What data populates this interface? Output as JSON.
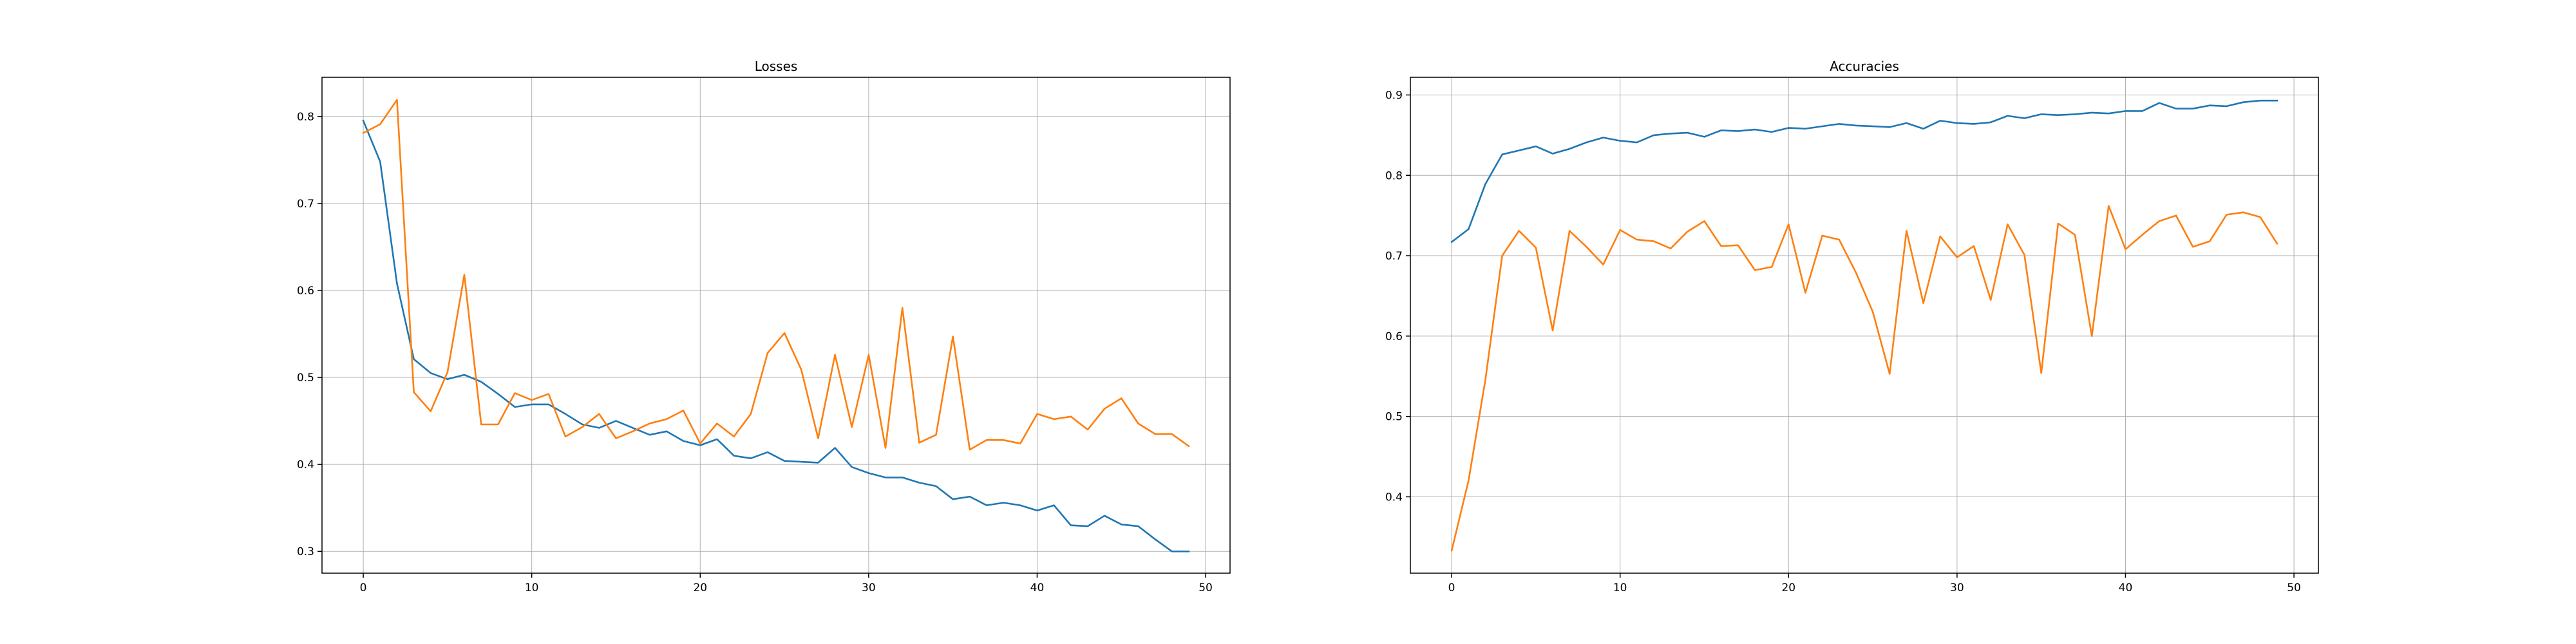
{
  "chart_data": [
    {
      "type": "line",
      "title": "Losses",
      "xlabel": "",
      "ylabel": "",
      "xlim": [
        -2.45,
        51.45
      ],
      "ylim": [
        0.275,
        0.845
      ],
      "grid": true,
      "xticks": [
        0,
        10,
        20,
        30,
        40,
        50
      ],
      "yticks": [
        0.3,
        0.4,
        0.5,
        0.6,
        0.7,
        0.8
      ],
      "xtick_labels": [
        "0",
        "10",
        "20",
        "30",
        "40",
        "50"
      ],
      "ytick_labels": [
        "0.3",
        "0.4",
        "0.5",
        "0.6",
        "0.7",
        "0.8"
      ],
      "x": [
        0,
        1,
        2,
        3,
        4,
        5,
        6,
        7,
        8,
        9,
        10,
        11,
        12,
        13,
        14,
        15,
        16,
        17,
        18,
        19,
        20,
        21,
        22,
        23,
        24,
        25,
        26,
        27,
        28,
        29,
        30,
        31,
        32,
        33,
        34,
        35,
        36,
        37,
        38,
        39,
        40,
        41,
        42,
        43,
        44,
        45,
        46,
        47,
        48,
        49
      ],
      "series": [
        {
          "color": "#1f77b4",
          "values": [
            0.795,
            0.748,
            0.608,
            0.521,
            0.505,
            0.498,
            0.503,
            0.495,
            0.481,
            0.466,
            0.469,
            0.469,
            0.458,
            0.446,
            0.442,
            0.45,
            0.442,
            0.434,
            0.438,
            0.427,
            0.422,
            0.429,
            0.41,
            0.407,
            0.414,
            0.404,
            0.403,
            0.402,
            0.419,
            0.397,
            0.39,
            0.385,
            0.385,
            0.379,
            0.375,
            0.36,
            0.363,
            0.353,
            0.356,
            0.353,
            0.347,
            0.353,
            0.33,
            0.329,
            0.341,
            0.331,
            0.329,
            0.314,
            0.3,
            0.3
          ]
        },
        {
          "color": "#ff7f0e",
          "values": [
            0.781,
            0.791,
            0.819,
            0.483,
            0.461,
            0.506,
            0.618,
            0.446,
            0.446,
            0.482,
            0.474,
            0.481,
            0.432,
            0.443,
            0.458,
            0.43,
            0.438,
            0.447,
            0.452,
            0.462,
            0.424,
            0.447,
            0.432,
            0.458,
            0.528,
            0.551,
            0.509,
            0.43,
            0.526,
            0.443,
            0.526,
            0.419,
            0.58,
            0.425,
            0.434,
            0.547,
            0.417,
            0.428,
            0.428,
            0.424,
            0.458,
            0.452,
            0.455,
            0.44,
            0.464,
            0.476,
            0.447,
            0.435,
            0.435,
            0.421
          ]
        }
      ]
    },
    {
      "type": "line",
      "title": "Accuracies",
      "xlabel": "",
      "ylabel": "",
      "xlim": [
        -2.45,
        51.45
      ],
      "ylim": [
        0.305,
        0.922
      ],
      "grid": true,
      "xticks": [
        0,
        10,
        20,
        30,
        40,
        50
      ],
      "yticks": [
        0.4,
        0.5,
        0.6,
        0.7,
        0.8,
        0.9
      ],
      "xtick_labels": [
        "0",
        "10",
        "20",
        "30",
        "40",
        "50"
      ],
      "ytick_labels": [
        "0.4",
        "0.5",
        "0.6",
        "0.7",
        "0.8",
        "0.9"
      ],
      "x": [
        0,
        1,
        2,
        3,
        4,
        5,
        6,
        7,
        8,
        9,
        10,
        11,
        12,
        13,
        14,
        15,
        16,
        17,
        18,
        19,
        20,
        21,
        22,
        23,
        24,
        25,
        26,
        27,
        28,
        29,
        30,
        31,
        32,
        33,
        34,
        35,
        36,
        37,
        38,
        39,
        40,
        41,
        42,
        43,
        44,
        45,
        46,
        47,
        48,
        49
      ],
      "series": [
        {
          "color": "#1f77b4",
          "values": [
            0.717,
            0.733,
            0.789,
            0.826,
            0.831,
            0.836,
            0.827,
            0.833,
            0.841,
            0.847,
            0.843,
            0.841,
            0.85,
            0.852,
            0.853,
            0.848,
            0.856,
            0.855,
            0.857,
            0.854,
            0.859,
            0.858,
            0.861,
            0.864,
            0.862,
            0.861,
            0.86,
            0.865,
            0.858,
            0.868,
            0.865,
            0.864,
            0.866,
            0.874,
            0.871,
            0.876,
            0.875,
            0.876,
            0.878,
            0.877,
            0.88,
            0.88,
            0.89,
            0.883,
            0.883,
            0.887,
            0.886,
            0.891,
            0.893,
            0.893
          ]
        },
        {
          "color": "#ff7f0e",
          "values": [
            0.333,
            0.42,
            0.545,
            0.7,
            0.731,
            0.71,
            0.607,
            0.731,
            0.711,
            0.689,
            0.732,
            0.72,
            0.718,
            0.709,
            0.73,
            0.743,
            0.712,
            0.713,
            0.682,
            0.686,
            0.739,
            0.654,
            0.725,
            0.72,
            0.679,
            0.63,
            0.553,
            0.731,
            0.641,
            0.724,
            0.698,
            0.712,
            0.645,
            0.739,
            0.701,
            0.554,
            0.74,
            0.726,
            0.6,
            0.762,
            0.708,
            0.726,
            0.743,
            0.75,
            0.711,
            0.718,
            0.751,
            0.754,
            0.748,
            0.715
          ]
        }
      ]
    }
  ]
}
